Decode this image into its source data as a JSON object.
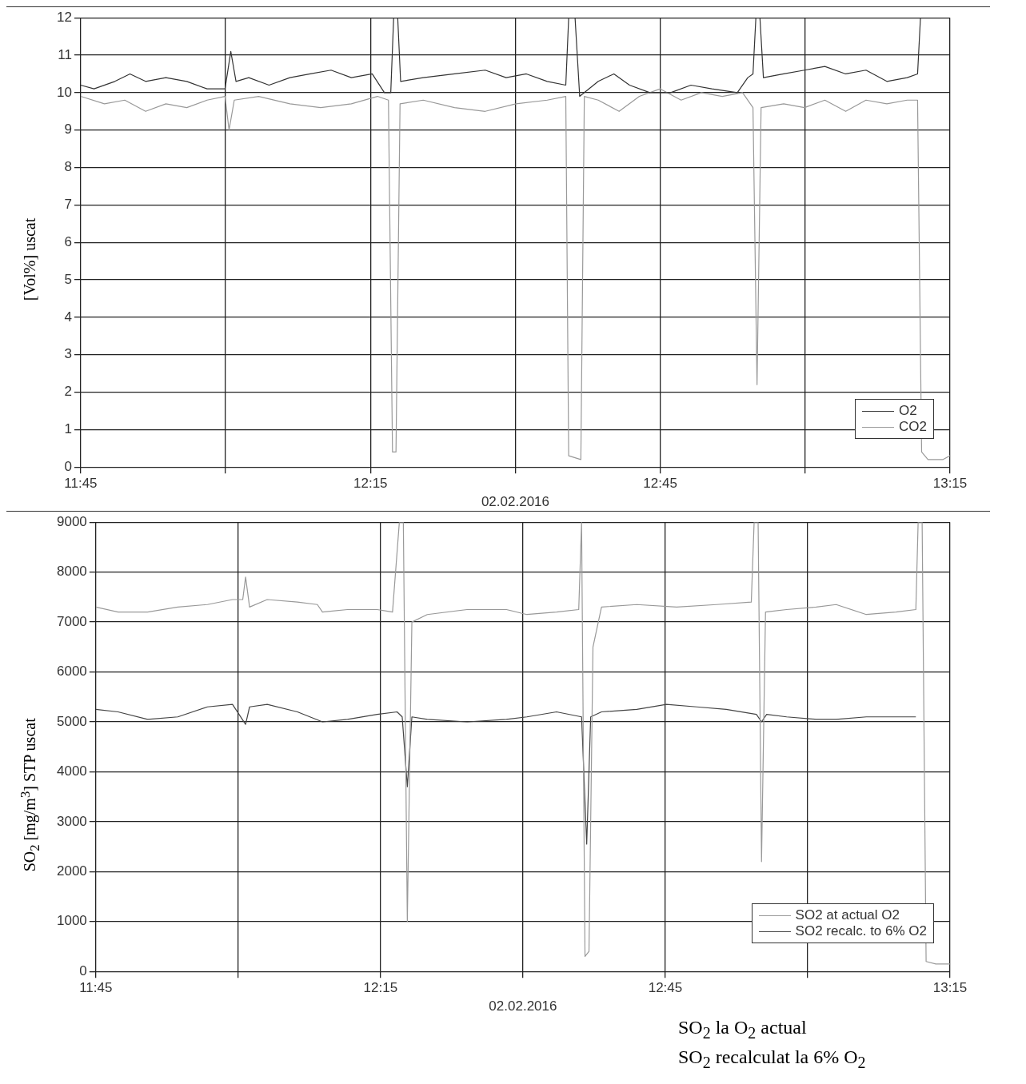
{
  "chart_data": [
    {
      "type": "line",
      "ylabel": "[Vol%] uscat",
      "xlabel": "02.02.2016",
      "xlim": [
        11.75,
        13.25
      ],
      "xticks": [
        {
          "value": 11.75,
          "label": "11:45"
        },
        {
          "value": 12,
          "label": null
        },
        {
          "value": 12.25,
          "label": "12:15"
        },
        {
          "value": 12.5,
          "label": null
        },
        {
          "value": 12.75,
          "label": "12:45"
        },
        {
          "value": 13,
          "label": null
        },
        {
          "value": 13.25,
          "label": "13:15"
        }
      ],
      "ylim": [
        0,
        12
      ],
      "yticks": [
        0,
        1,
        2,
        3,
        4,
        5,
        6,
        7,
        8,
        9,
        10,
        11,
        12
      ],
      "grid": true,
      "legend": "bottom right",
      "marker": "none",
      "line_style": "solid",
      "series": [
        {
          "name": "O2",
          "color": "#333333",
          "x": [
            11.75,
            11.773,
            11.809,
            11.835,
            11.862,
            11.897,
            11.933,
            11.968,
            11.999,
            12.009,
            12.018,
            12.04,
            12.075,
            12.111,
            12.146,
            12.182,
            12.217,
            12.253,
            12.274,
            12.285,
            12.29,
            12.297,
            12.302,
            12.341,
            12.395,
            12.448,
            12.484,
            12.519,
            12.555,
            12.587,
            12.592,
            12.603,
            12.611,
            12.643,
            12.67,
            12.697,
            12.732,
            12.768,
            12.803,
            12.839,
            12.883,
            12.901,
            12.91,
            12.915,
            12.922,
            12.928,
            12.963,
            12.999,
            13.034,
            13.07,
            13.105,
            13.141,
            13.176,
            13.194,
            13.199
          ],
          "values": [
            10.2,
            10.1,
            10.3,
            10.5,
            10.3,
            10.4,
            10.3,
            10.1,
            10.1,
            11.1,
            10.3,
            10.4,
            10.2,
            10.4,
            10.5,
            10.6,
            10.4,
            10.5,
            10.0,
            10.0,
            12,
            12,
            10.3,
            10.4,
            10.5,
            10.6,
            10.4,
            10.5,
            10.3,
            10.2,
            12,
            12,
            9.9,
            10.3,
            10.5,
            10.2,
            10.0,
            10.0,
            10.2,
            10.1,
            10.0,
            10.4,
            10.5,
            12,
            12,
            10.4,
            10.5,
            10.6,
            10.7,
            10.5,
            10.6,
            10.3,
            10.4,
            10.5,
            12
          ]
        },
        {
          "name": "CO2",
          "color": "#999999",
          "x": [
            11.75,
            11.791,
            11.826,
            11.862,
            11.897,
            11.933,
            11.968,
            11.999,
            12.006,
            12.015,
            12.057,
            12.111,
            12.164,
            12.217,
            12.262,
            12.281,
            12.288,
            12.294,
            12.301,
            12.341,
            12.395,
            12.448,
            12.501,
            12.555,
            12.587,
            12.592,
            12.613,
            12.619,
            12.643,
            12.679,
            12.714,
            12.75,
            12.786,
            12.821,
            12.857,
            12.892,
            12.91,
            12.917,
            12.924,
            12.963,
            12.999,
            13.034,
            13.07,
            13.105,
            13.141,
            13.176,
            13.194,
            13.201,
            13.212,
            13.238,
            13.25
          ],
          "values": [
            9.9,
            9.7,
            9.8,
            9.5,
            9.7,
            9.6,
            9.8,
            9.9,
            9.0,
            9.8,
            9.9,
            9.7,
            9.6,
            9.7,
            9.9,
            9.8,
            0.4,
            0.4,
            9.7,
            9.8,
            9.6,
            9.5,
            9.7,
            9.8,
            9.9,
            0.3,
            0.2,
            9.9,
            9.8,
            9.5,
            9.9,
            10.1,
            9.8,
            10.0,
            9.9,
            10.0,
            9.6,
            2.2,
            9.6,
            9.7,
            9.6,
            9.8,
            9.5,
            9.8,
            9.7,
            9.8,
            9.8,
            0.4,
            0.2,
            0.2,
            0.3
          ]
        }
      ]
    },
    {
      "type": "line",
      "ylabel": "SO$_{2}$ [mg/m$^{3}$] STP uscat",
      "xlabel": "02.02.2016",
      "xlim": [
        11.75,
        13.25
      ],
      "xticks": [
        {
          "value": 11.75,
          "label": "11:45"
        },
        {
          "value": 12,
          "label": null
        },
        {
          "value": 12.25,
          "label": "12:15"
        },
        {
          "value": 12.5,
          "label": null
        },
        {
          "value": 12.75,
          "label": "12:45"
        },
        {
          "value": 13,
          "label": null
        },
        {
          "value": 13.25,
          "label": "13:15"
        }
      ],
      "ylim": [
        0,
        9000
      ],
      "yticks": [
        0,
        1000,
        2000,
        3000,
        4000,
        5000,
        6000,
        7000,
        8000,
        9000
      ],
      "grid": true,
      "legend": "bottom right",
      "marker": "none",
      "line_style": "solid",
      "annotations": [
        "SO$_{2}$ la O$_{2}$ actual",
        "SO$_{2}$ recalculat la 6% O$_{2}$"
      ],
      "series": [
        {
          "name": "SO2 at actual O2",
          "color": "#999999",
          "x": [
            11.75,
            11.789,
            11.841,
            11.894,
            11.946,
            11.99,
            12.008,
            12.013,
            12.02,
            12.051,
            12.104,
            12.139,
            12.148,
            12.192,
            12.244,
            12.271,
            12.283,
            12.29,
            12.297,
            12.305,
            12.332,
            12.402,
            12.471,
            12.507,
            12.559,
            12.598,
            12.603,
            12.609,
            12.616,
            12.623,
            12.638,
            12.7,
            12.77,
            12.84,
            12.901,
            12.906,
            12.913,
            12.919,
            12.926,
            12.963,
            13.015,
            13.05,
            13.103,
            13.155,
            13.19,
            13.194,
            13.201,
            13.208,
            13.225,
            13.25
          ],
          "values": [
            7300,
            7200,
            7200,
            7300,
            7350,
            7450,
            7450,
            7900,
            7300,
            7450,
            7400,
            7350,
            7200,
            7250,
            7250,
            7200,
            9000,
            9000,
            1000,
            7000,
            7150,
            7250,
            7250,
            7150,
            7200,
            7250,
            9000,
            300,
            400,
            6500,
            7300,
            7350,
            7300,
            7350,
            7400,
            9000,
            9000,
            2200,
            7200,
            7250,
            7300,
            7350,
            7150,
            7200,
            7250,
            9000,
            9000,
            200,
            150,
            150
          ]
        },
        {
          "name": "SO2 recalc. to 6% O2",
          "color": "#444444",
          "x": [
            11.75,
            11.789,
            11.841,
            11.894,
            11.946,
            11.99,
            12.013,
            12.02,
            12.051,
            12.104,
            12.148,
            12.192,
            12.244,
            12.279,
            12.288,
            12.297,
            12.305,
            12.332,
            12.402,
            12.471,
            12.507,
            12.559,
            12.603,
            12.612,
            12.619,
            12.638,
            12.7,
            12.752,
            12.805,
            12.857,
            12.91,
            12.919,
            12.928,
            12.963,
            13.015,
            13.05,
            13.103,
            13.155,
            13.19
          ],
          "values": [
            5250,
            5200,
            5050,
            5100,
            5300,
            5350,
            4950,
            5300,
            5350,
            5200,
            5000,
            5050,
            5150,
            5200,
            5100,
            3700,
            5100,
            5050,
            5000,
            5050,
            5100,
            5200,
            5100,
            2550,
            5100,
            5200,
            5250,
            5350,
            5300,
            5250,
            5150,
            5000,
            5150,
            5100,
            5050,
            5050,
            5100,
            5100,
            5100
          ]
        }
      ]
    }
  ]
}
